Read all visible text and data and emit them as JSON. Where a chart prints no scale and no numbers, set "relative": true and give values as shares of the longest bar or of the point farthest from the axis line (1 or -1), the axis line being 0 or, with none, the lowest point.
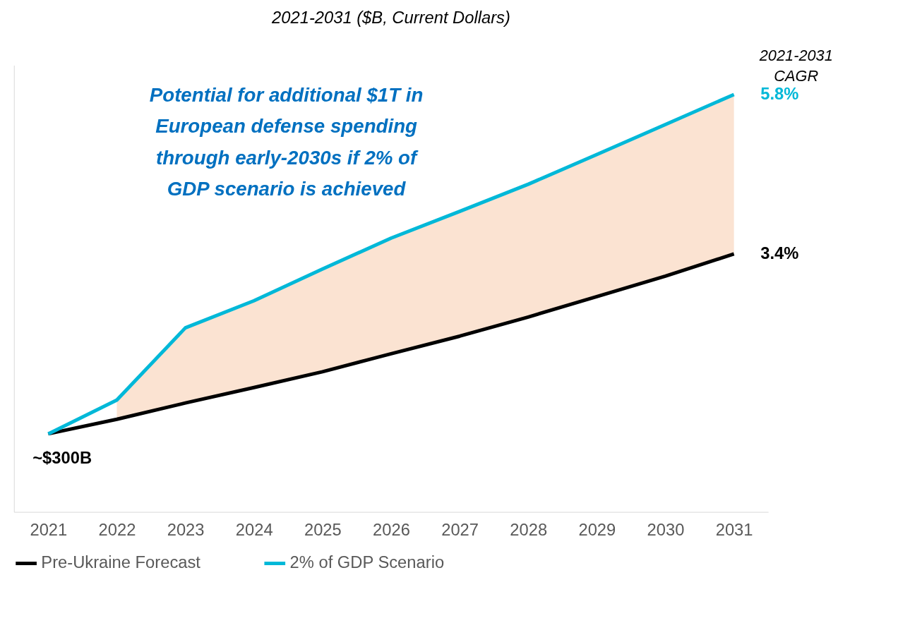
{
  "chart_data": {
    "type": "line",
    "subtitle": "2021-2031 ($B, Current Dollars)",
    "relative": true,
    "categories": [
      "2021",
      "2022",
      "2023",
      "2024",
      "2025",
      "2026",
      "2027",
      "2028",
      "2029",
      "2030",
      "2031"
    ],
    "series": [
      {
        "name": "Pre-Ukraine Forecast",
        "color": "#000000",
        "values": [
          0.187,
          0.222,
          0.261,
          0.298,
          0.336,
          0.379,
          0.421,
          0.467,
          0.516,
          0.565,
          0.618
        ]
      },
      {
        "name": "2% of GDP Scenario",
        "color": "#00b8d8",
        "values": [
          0.187,
          0.268,
          0.441,
          0.506,
          0.582,
          0.656,
          0.72,
          0.785,
          0.856,
          0.928,
          1.0
        ],
        "lower": [
          null,
          0.222,
          0.261,
          0.298,
          0.336,
          0.379,
          0.421,
          0.467,
          0.516,
          0.565,
          0.618
        ],
        "upper": [
          null,
          0.268,
          0.441,
          0.506,
          0.582,
          0.656,
          0.72,
          0.785,
          0.856,
          0.928,
          1.0
        ]
      }
    ],
    "annotations": [
      "Potential for additional $1T in\nEuropean defense spending\nthrough early-2030s if 2% of\nGDP scenario is achieved",
      "2021-2031\nCAGR",
      {
        "text": "5.8%",
        "x": "2031",
        "y": 1.0
      },
      {
        "text": "3.4%",
        "x": "2031",
        "y": 0.618
      },
      {
        "text": "~$300B",
        "x": "2021",
        "y": 0.187
      }
    ],
    "legend": "bottom"
  }
}
